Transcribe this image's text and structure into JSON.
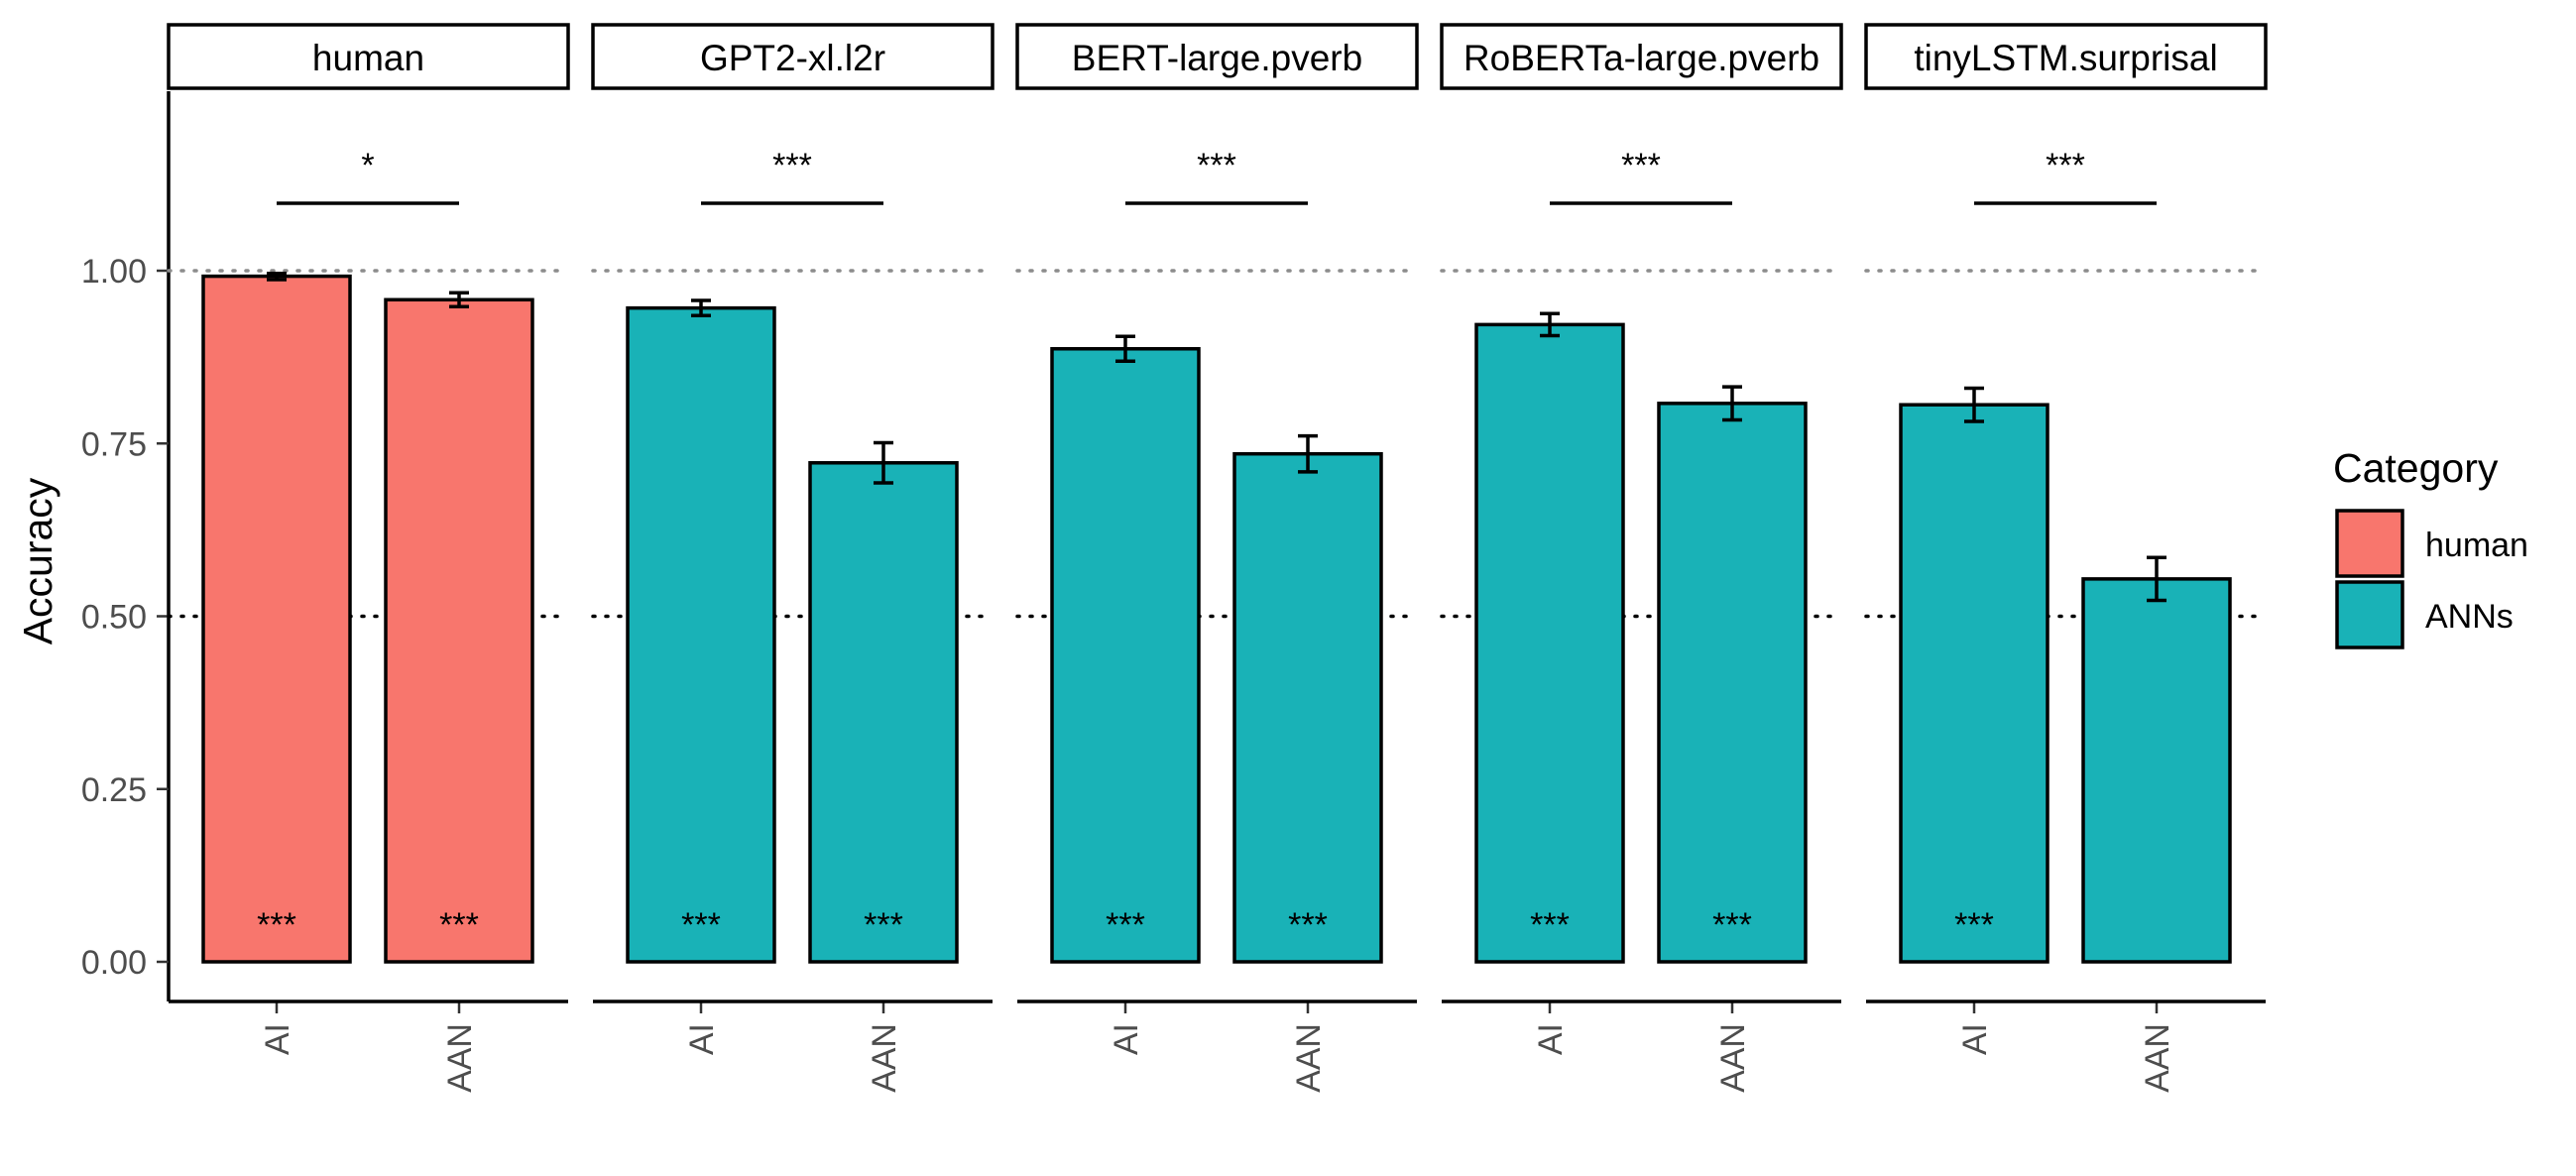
{
  "chart_data": {
    "type": "bar",
    "ylabel": "Accuracy",
    "ylim": [
      0,
      1.25
    ],
    "yticks": [
      0,
      0.25,
      0.5,
      0.75,
      1.0
    ],
    "ytick_labels": [
      "0.00",
      "0.25",
      "0.50",
      "0.75",
      "1.00"
    ],
    "categories": [
      "AI",
      "AAN"
    ],
    "reference_lines": [
      {
        "y": 1.0,
        "style": "dotted",
        "color": "#8c8c8c"
      },
      {
        "y": 0.5,
        "style": "dotted",
        "color": "#000000"
      }
    ],
    "legend": {
      "title": "Category",
      "placement": "right",
      "entries": [
        {
          "label": "human",
          "color": "#F8766D"
        },
        {
          "label": "ANNs",
          "color": "#19B2B7"
        }
      ]
    },
    "facets": [
      {
        "label": "human",
        "category": "human",
        "values": [
          0.992,
          0.958
        ],
        "error_low": [
          0.987,
          0.948
        ],
        "error_high": [
          0.996,
          0.968
        ],
        "bar_sig": [
          "***",
          "***"
        ],
        "comparison_sig": "*"
      },
      {
        "label": "GPT2-xl.l2r",
        "category": "ANNs",
        "values": [
          0.946,
          0.722
        ],
        "error_low": [
          0.935,
          0.693
        ],
        "error_high": [
          0.957,
          0.751
        ],
        "bar_sig": [
          "***",
          "***"
        ],
        "comparison_sig": "***"
      },
      {
        "label": "BERT-large.pverb",
        "category": "ANNs",
        "values": [
          0.887,
          0.735
        ],
        "error_low": [
          0.869,
          0.709
        ],
        "error_high": [
          0.905,
          0.761
        ],
        "bar_sig": [
          "***",
          "***"
        ],
        "comparison_sig": "***"
      },
      {
        "label": "RoBERTa-large.pverb",
        "category": "ANNs",
        "values": [
          0.922,
          0.808
        ],
        "error_low": [
          0.906,
          0.784
        ],
        "error_high": [
          0.938,
          0.832
        ],
        "bar_sig": [
          "***",
          "***"
        ],
        "comparison_sig": "***"
      },
      {
        "label": "tinyLSTM.surprisal",
        "category": "ANNs",
        "values": [
          0.806,
          0.554
        ],
        "error_low": [
          0.782,
          0.523
        ],
        "error_high": [
          0.83,
          0.585
        ],
        "bar_sig": [
          "***",
          ""
        ],
        "comparison_sig": "***"
      }
    ]
  }
}
